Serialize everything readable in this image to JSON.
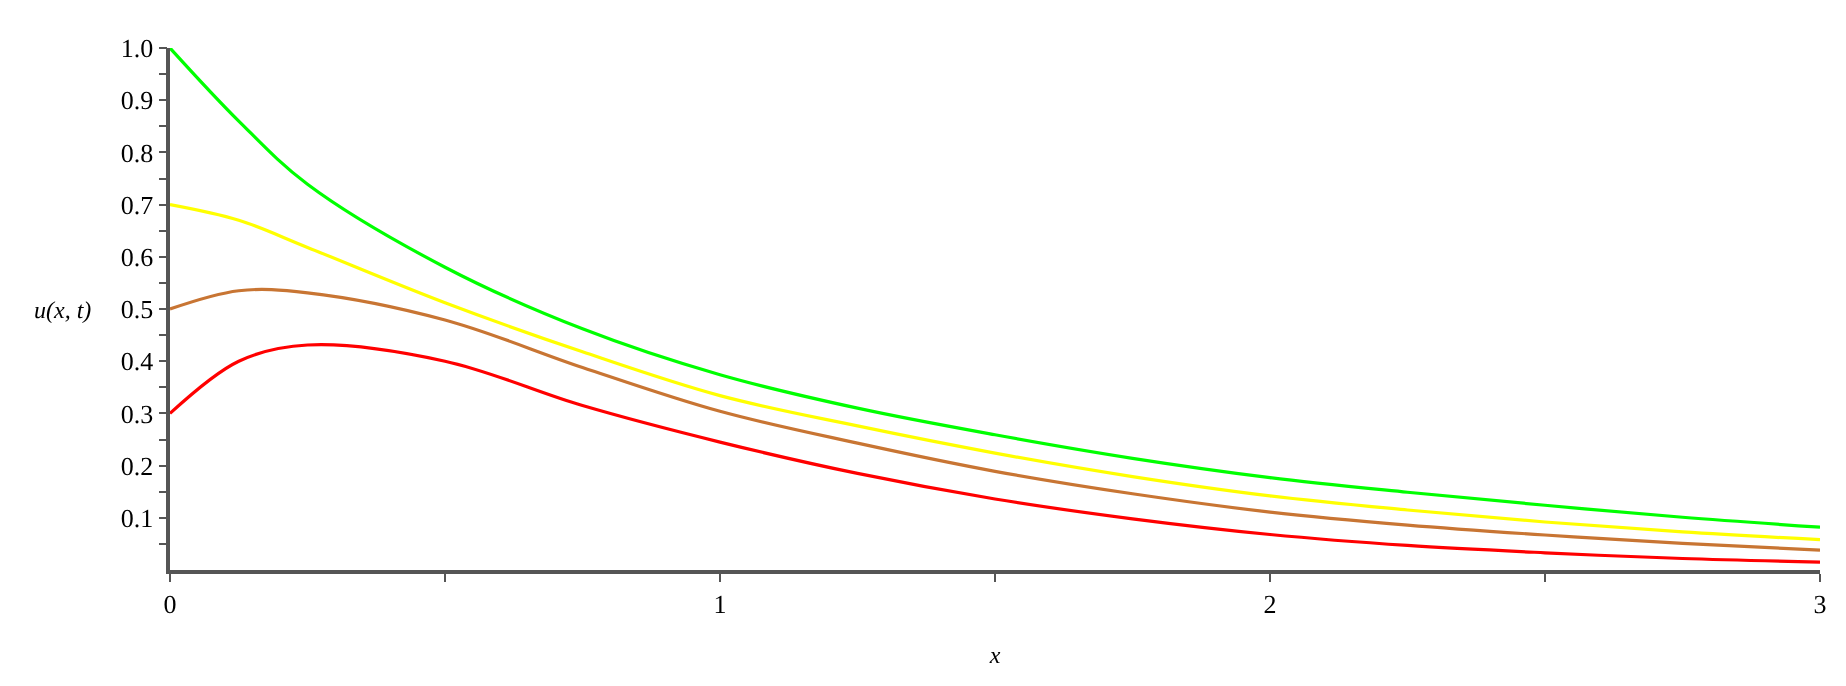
{
  "chart_data": {
    "type": "line",
    "xlabel": "x",
    "ylabel": "u(x, t)",
    "x": [
      0,
      0.125,
      0.25,
      0.5,
      0.75,
      1,
      1.25,
      1.5,
      1.75,
      2,
      2.25,
      2.5,
      2.75,
      3
    ],
    "series": [
      {
        "color": "#00ff00",
        "values": [
          1.0,
          0.86,
          0.739,
          0.58,
          0.462,
          0.374,
          0.31,
          0.259,
          0.214,
          0.177,
          0.149,
          0.124,
          0.101,
          0.082
        ]
      },
      {
        "color": "#ffff00",
        "values": [
          0.7,
          0.67,
          0.618,
          0.512,
          0.418,
          0.334,
          0.276,
          0.224,
          0.179,
          0.142,
          0.115,
          0.092,
          0.073,
          0.058
        ]
      },
      {
        "color": "#c87533",
        "values": [
          0.5,
          0.535,
          0.531,
          0.479,
          0.388,
          0.304,
          0.243,
          0.189,
          0.146,
          0.111,
          0.086,
          0.067,
          0.051,
          0.038
        ]
      },
      {
        "color": "#ff0000",
        "values": [
          0.3,
          0.4,
          0.431,
          0.4,
          0.315,
          0.245,
          0.185,
          0.136,
          0.098,
          0.068,
          0.047,
          0.033,
          0.022,
          0.015
        ]
      }
    ],
    "xlim": [
      0,
      3
    ],
    "xticks": [
      0,
      {
        "value": 0.5,
        "label": null
      },
      1,
      {
        "value": 1.5,
        "label": null
      },
      2,
      {
        "value": 2.5,
        "label": null
      },
      3
    ],
    "ylim": [
      0,
      1.0
    ],
    "yticks": [
      {
        "value": 0.05,
        "label": null
      },
      0.1,
      {
        "value": 0.15,
        "label": null
      },
      0.2,
      {
        "value": 0.25,
        "label": null
      },
      0.3,
      {
        "value": 0.35,
        "label": null
      },
      0.4,
      {
        "value": 0.45,
        "label": null
      },
      0.5,
      {
        "value": 0.55,
        "label": null
      },
      0.6,
      {
        "value": 0.65,
        "label": null
      },
      0.7,
      {
        "value": 0.75,
        "label": null
      },
      0.8,
      {
        "value": 0.85,
        "label": null
      },
      0.9,
      {
        "value": 0.95,
        "label": null
      },
      {
        "value": 1.0,
        "label": "1.0"
      }
    ],
    "marker": "none",
    "line_style": "solid"
  }
}
